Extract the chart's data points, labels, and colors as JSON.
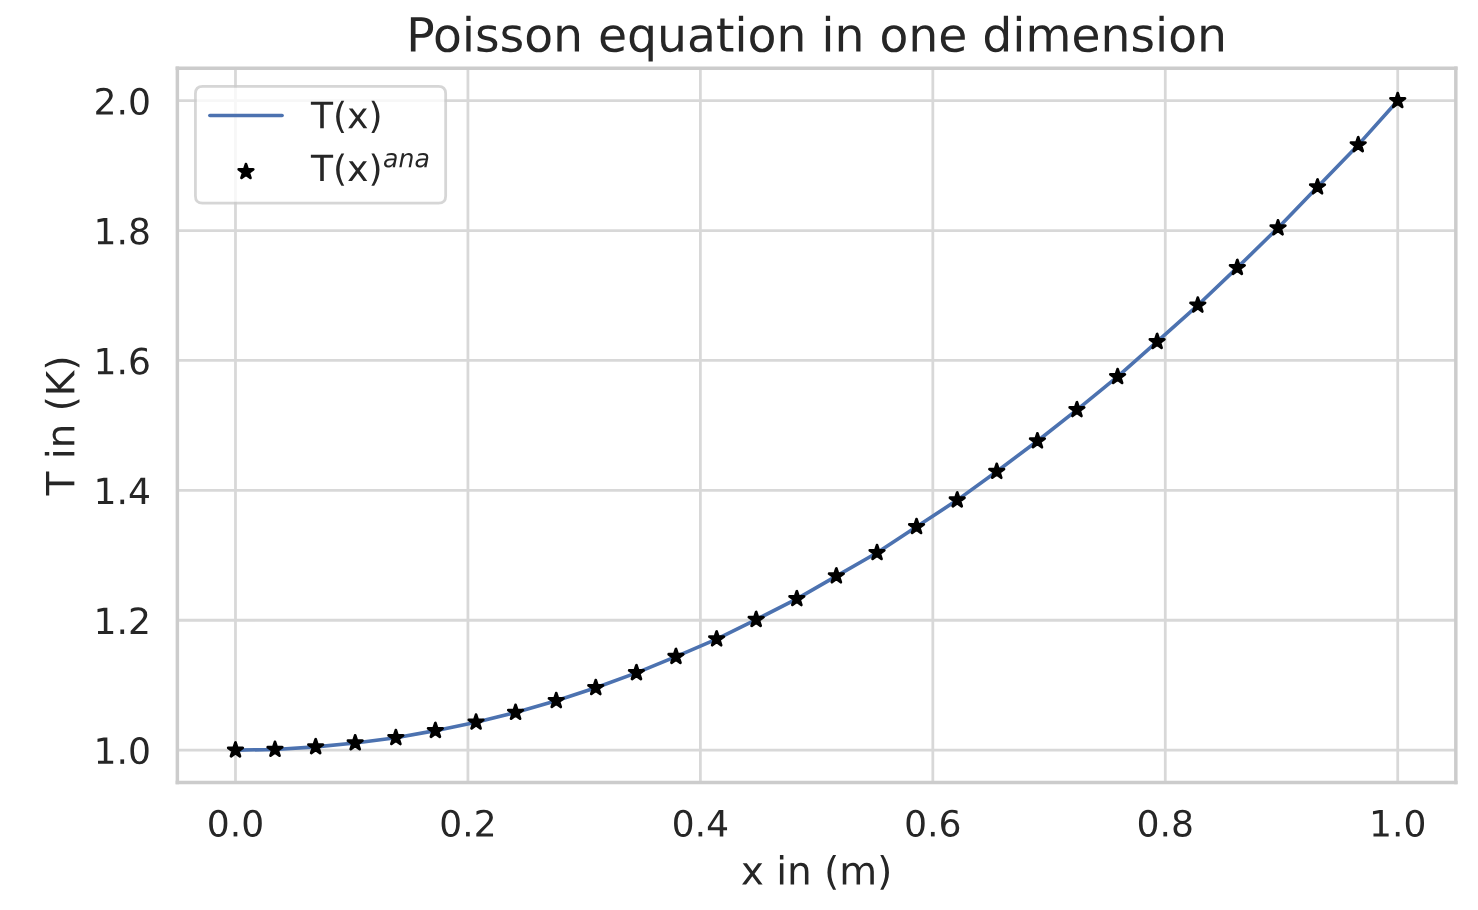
{
  "chart_data": {
    "type": "line",
    "title": "Poisson equation in one dimension",
    "xlabel": "x in (m)",
    "ylabel": "T in (K)",
    "xlim": [
      -0.05,
      1.05
    ],
    "ylim": [
      0.95,
      2.05
    ],
    "xticks": [
      {
        "value": 0,
        "label": "0.0"
      },
      0.2,
      0.4,
      0.6,
      0.8,
      {
        "value": 1,
        "label": "1.0"
      }
    ],
    "yticks": [
      {
        "value": 1,
        "label": "1.0"
      },
      1.2,
      1.4,
      1.6,
      1.8,
      {
        "value": 2,
        "label": "2.0"
      }
    ],
    "grid": true,
    "legend": "top left",
    "series": [
      {
        "name": "T(x)",
        "color": "#4c72b0",
        "marker": "none",
        "line_style": "solid",
        "x": [
          0,
          0.034,
          0.069,
          0.103,
          0.138,
          0.172,
          0.207,
          0.241,
          0.276,
          0.31,
          0.345,
          0.379,
          0.414,
          0.448,
          0.483,
          0.517,
          0.552,
          0.586,
          0.621,
          0.655,
          0.69,
          0.724,
          0.759,
          0.793,
          0.828,
          0.862,
          0.897,
          0.931,
          0.966,
          1.0
        ],
        "values": [
          1.0,
          1.001,
          1.005,
          1.011,
          1.019,
          1.03,
          1.043,
          1.058,
          1.076,
          1.096,
          1.119,
          1.144,
          1.171,
          1.201,
          1.233,
          1.268,
          1.304,
          1.344,
          1.385,
          1.429,
          1.476,
          1.524,
          1.575,
          1.629,
          1.685,
          1.743,
          1.804,
          1.867,
          1.932,
          2.0
        ]
      },
      {
        "name": "T(x)$^{ana}$",
        "type": "scatter",
        "color": "#000000",
        "marker": "star",
        "x": [
          0,
          0.034,
          0.069,
          0.103,
          0.138,
          0.172,
          0.207,
          0.241,
          0.276,
          0.31,
          0.345,
          0.379,
          0.414,
          0.448,
          0.483,
          0.517,
          0.552,
          0.586,
          0.621,
          0.655,
          0.69,
          0.724,
          0.759,
          0.793,
          0.828,
          0.862,
          0.897,
          0.931,
          0.966,
          1.0
        ],
        "values": [
          1.0,
          1.001,
          1.005,
          1.011,
          1.019,
          1.03,
          1.043,
          1.058,
          1.076,
          1.096,
          1.119,
          1.144,
          1.171,
          1.201,
          1.233,
          1.268,
          1.304,
          1.344,
          1.385,
          1.429,
          1.476,
          1.524,
          1.575,
          1.629,
          1.685,
          1.743,
          1.804,
          1.867,
          1.932,
          2.0
        ]
      }
    ]
  }
}
